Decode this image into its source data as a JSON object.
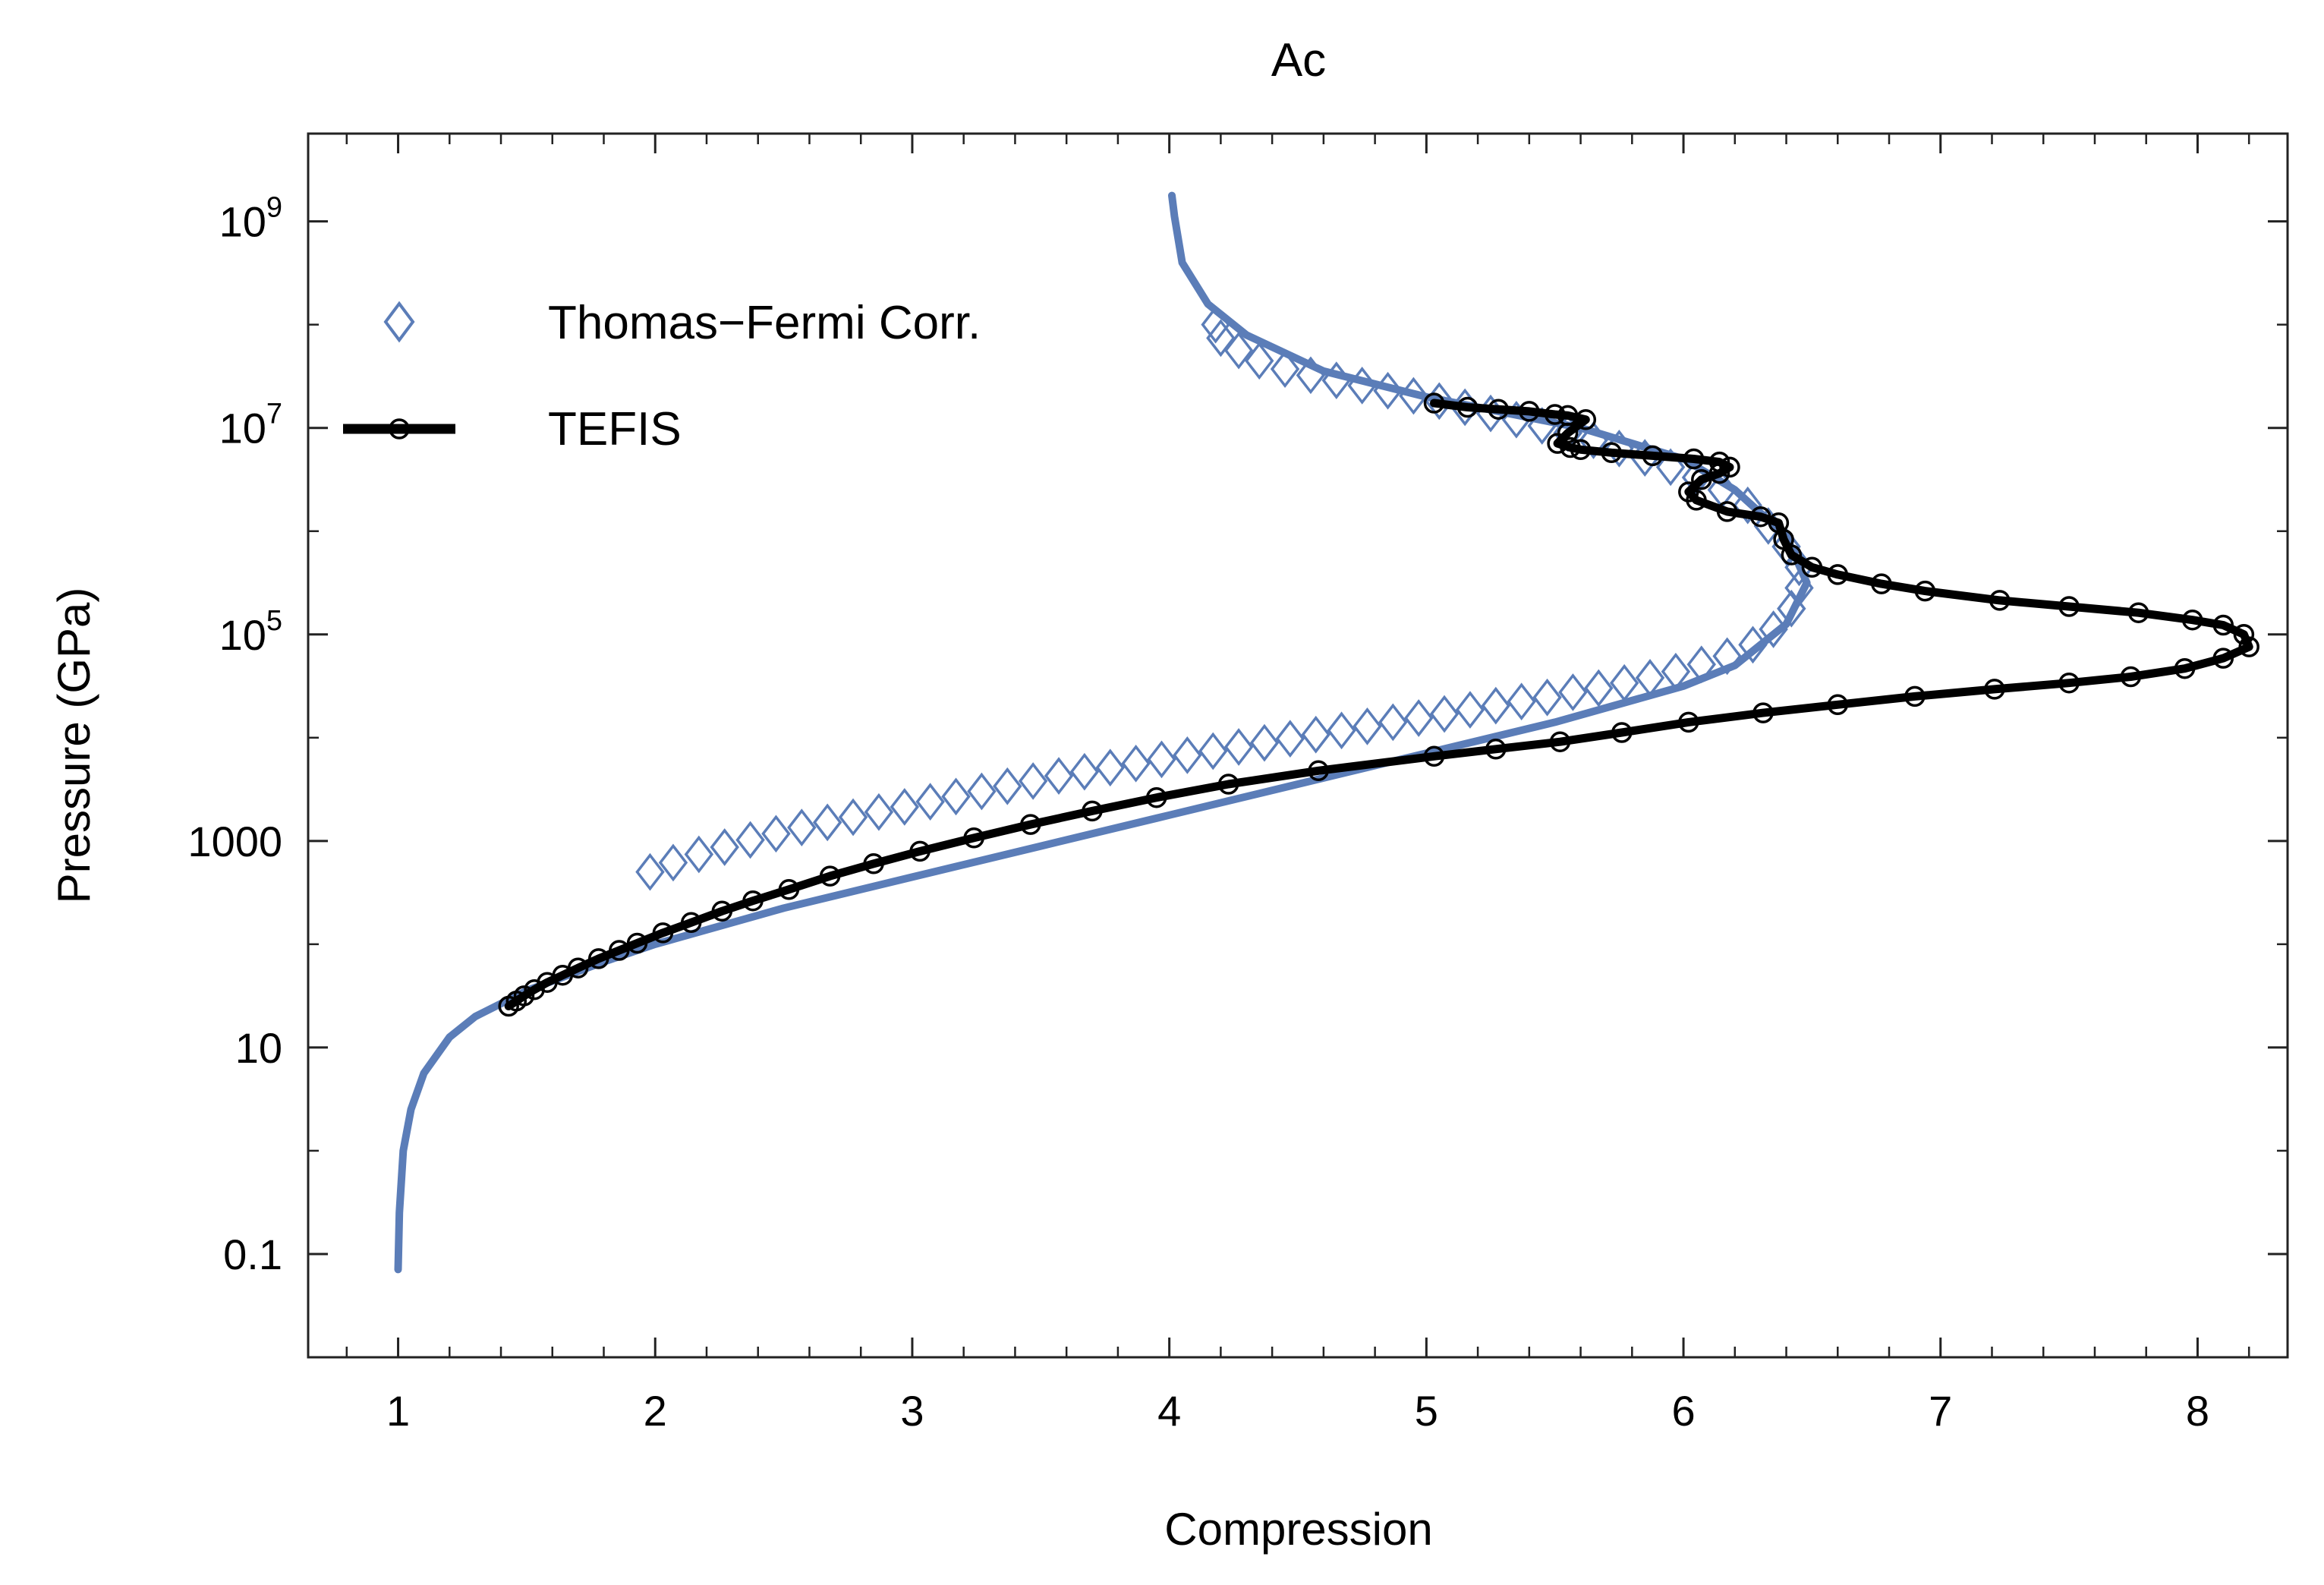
{
  "chart_data": {
    "type": "line",
    "title": "Ac",
    "xlabel": "Compression",
    "ylabel": "Pressure (GPa)",
    "xlim": [
      0.65,
      8.35
    ],
    "ylim_log10": [
      -2.0,
      9.85
    ],
    "y_scale": "log",
    "grid": false,
    "legend_position": "top-left",
    "x_ticks": [
      {
        "value": 1,
        "label": "1"
      },
      {
        "value": 2,
        "label": "2"
      },
      {
        "value": 3,
        "label": "3"
      },
      {
        "value": 4,
        "label": "4"
      },
      {
        "value": 5,
        "label": "5"
      },
      {
        "value": 6,
        "label": "6"
      },
      {
        "value": 7,
        "label": "7"
      },
      {
        "value": 8,
        "label": "8"
      }
    ],
    "y_ticks": [
      {
        "exp": -1,
        "label": "0.1",
        "sup": ""
      },
      {
        "exp": 1,
        "label": "10",
        "sup": ""
      },
      {
        "exp": 3,
        "label": "1000",
        "sup": ""
      },
      {
        "exp": 5,
        "label": "10",
        "sup": "5"
      },
      {
        "exp": 7,
        "label": "10",
        "sup": "7"
      },
      {
        "exp": 9,
        "label": "10",
        "sup": "9"
      }
    ],
    "series": [
      {
        "name": "Thomas-Fermi Corr. (curve)",
        "color": "#5b7db8",
        "style": "line",
        "points": [
          [
            1.0,
            -1.15
          ],
          [
            1.005,
            -0.6
          ],
          [
            1.02,
            0.0
          ],
          [
            1.05,
            0.4
          ],
          [
            1.1,
            0.75
          ],
          [
            1.2,
            1.1
          ],
          [
            1.3,
            1.3
          ],
          [
            1.5,
            1.55
          ],
          [
            1.8,
            1.83
          ],
          [
            2.0,
            2.0
          ],
          [
            2.5,
            2.35
          ],
          [
            3.0,
            2.65
          ],
          [
            3.5,
            2.95
          ],
          [
            4.0,
            3.25
          ],
          [
            4.5,
            3.55
          ],
          [
            5.0,
            3.85
          ],
          [
            5.5,
            4.15
          ],
          [
            6.0,
            4.5
          ],
          [
            6.2,
            4.7
          ],
          [
            6.4,
            5.1
          ],
          [
            6.48,
            5.5
          ],
          [
            6.4,
            5.95
          ],
          [
            6.2,
            6.4
          ],
          [
            6.0,
            6.7
          ],
          [
            5.6,
            7.0
          ],
          [
            5.0,
            7.3
          ],
          [
            4.6,
            7.55
          ],
          [
            4.3,
            7.9
          ],
          [
            4.15,
            8.2
          ],
          [
            4.05,
            8.6
          ],
          [
            4.02,
            9.05
          ],
          [
            4.01,
            9.25
          ]
        ]
      },
      {
        "name": "Thomas-Fermi Corr.",
        "color": "#5b7db8",
        "style": "markers",
        "marker": "diamond",
        "points": [
          [
            1.98,
            2.7
          ],
          [
            2.07,
            2.79
          ],
          [
            2.17,
            2.87
          ],
          [
            2.27,
            2.94
          ],
          [
            2.37,
            3.01
          ],
          [
            2.47,
            3.07
          ],
          [
            2.57,
            3.13
          ],
          [
            2.67,
            3.18
          ],
          [
            2.77,
            3.23
          ],
          [
            2.87,
            3.28
          ],
          [
            2.97,
            3.33
          ],
          [
            3.07,
            3.38
          ],
          [
            3.17,
            3.43
          ],
          [
            3.27,
            3.48
          ],
          [
            3.37,
            3.53
          ],
          [
            3.47,
            3.58
          ],
          [
            3.57,
            3.63
          ],
          [
            3.67,
            3.67
          ],
          [
            3.77,
            3.71
          ],
          [
            3.87,
            3.75
          ],
          [
            3.97,
            3.79
          ],
          [
            4.07,
            3.83
          ],
          [
            4.17,
            3.87
          ],
          [
            4.27,
            3.91
          ],
          [
            4.37,
            3.95
          ],
          [
            4.47,
            3.99
          ],
          [
            4.57,
            4.03
          ],
          [
            4.67,
            4.07
          ],
          [
            4.77,
            4.11
          ],
          [
            4.87,
            4.15
          ],
          [
            4.97,
            4.19
          ],
          [
            5.07,
            4.23
          ],
          [
            5.17,
            4.27
          ],
          [
            5.27,
            4.31
          ],
          [
            5.37,
            4.35
          ],
          [
            5.47,
            4.39
          ],
          [
            5.57,
            4.44
          ],
          [
            5.67,
            4.48
          ],
          [
            5.77,
            4.53
          ],
          [
            5.87,
            4.58
          ],
          [
            5.97,
            4.64
          ],
          [
            6.07,
            4.71
          ],
          [
            6.17,
            4.79
          ],
          [
            6.27,
            4.9
          ],
          [
            6.35,
            5.05
          ],
          [
            6.42,
            5.25
          ],
          [
            6.45,
            5.45
          ],
          [
            6.45,
            5.65
          ],
          [
            6.4,
            5.85
          ],
          [
            6.33,
            6.05
          ],
          [
            6.25,
            6.25
          ],
          [
            6.15,
            6.4
          ],
          [
            6.05,
            6.52
          ],
          [
            5.95,
            6.62
          ],
          [
            5.85,
            6.71
          ],
          [
            5.75,
            6.8
          ],
          [
            5.65,
            6.88
          ],
          [
            5.55,
            6.95
          ],
          [
            5.45,
            7.02
          ],
          [
            5.35,
            7.08
          ],
          [
            5.25,
            7.14
          ],
          [
            5.15,
            7.2
          ],
          [
            5.05,
            7.26
          ],
          [
            4.95,
            7.31
          ],
          [
            4.85,
            7.36
          ],
          [
            4.75,
            7.41
          ],
          [
            4.65,
            7.46
          ],
          [
            4.55,
            7.51
          ],
          [
            4.45,
            7.57
          ],
          [
            4.35,
            7.65
          ],
          [
            4.27,
            7.75
          ],
          [
            4.2,
            7.87
          ],
          [
            4.18,
            8.0
          ]
        ]
      },
      {
        "name": "TEFIS",
        "color": "#000000",
        "style": "line+markers",
        "marker": "circle",
        "points": [
          [
            1.43,
            1.4
          ],
          [
            1.46,
            1.45
          ],
          [
            1.49,
            1.5
          ],
          [
            1.53,
            1.56
          ],
          [
            1.58,
            1.63
          ],
          [
            1.64,
            1.7
          ],
          [
            1.7,
            1.77
          ],
          [
            1.78,
            1.86
          ],
          [
            1.86,
            1.94
          ],
          [
            1.93,
            2.01
          ],
          [
            2.03,
            2.11
          ],
          [
            2.14,
            2.21
          ],
          [
            2.26,
            2.32
          ],
          [
            2.38,
            2.42
          ],
          [
            2.52,
            2.53
          ],
          [
            2.68,
            2.66
          ],
          [
            2.85,
            2.78
          ],
          [
            3.03,
            2.9
          ],
          [
            3.24,
            3.03
          ],
          [
            3.46,
            3.16
          ],
          [
            3.7,
            3.29
          ],
          [
            3.95,
            3.42
          ],
          [
            4.23,
            3.55
          ],
          [
            4.58,
            3.68
          ],
          [
            5.03,
            3.82
          ],
          [
            5.27,
            3.89
          ],
          [
            5.52,
            3.96
          ],
          [
            5.76,
            4.05
          ],
          [
            6.02,
            4.15
          ],
          [
            6.31,
            4.24
          ],
          [
            6.6,
            4.32
          ],
          [
            6.9,
            4.4
          ],
          [
            7.21,
            4.47
          ],
          [
            7.5,
            4.53
          ],
          [
            7.74,
            4.59
          ],
          [
            7.95,
            4.67
          ],
          [
            8.1,
            4.77
          ],
          [
            8.2,
            4.88
          ],
          [
            8.18,
            5.0
          ],
          [
            8.1,
            5.09
          ],
          [
            7.98,
            5.14
          ],
          [
            7.77,
            5.21
          ],
          [
            7.5,
            5.27
          ],
          [
            7.23,
            5.33
          ],
          [
            6.94,
            5.42
          ],
          [
            6.77,
            5.49
          ],
          [
            6.6,
            5.58
          ],
          [
            6.5,
            5.65
          ],
          [
            6.42,
            5.77
          ],
          [
            6.39,
            5.92
          ],
          [
            6.37,
            6.08
          ],
          [
            6.3,
            6.14
          ],
          [
            6.17,
            6.19
          ],
          [
            6.05,
            6.3
          ],
          [
            6.02,
            6.38
          ],
          [
            6.07,
            6.5
          ],
          [
            6.14,
            6.56
          ],
          [
            6.18,
            6.62
          ],
          [
            6.14,
            6.67
          ],
          [
            6.04,
            6.7
          ],
          [
            5.88,
            6.73
          ],
          [
            5.72,
            6.76
          ],
          [
            5.6,
            6.79
          ],
          [
            5.56,
            6.81
          ],
          [
            5.51,
            6.85
          ],
          [
            5.55,
            6.95
          ],
          [
            5.62,
            7.08
          ],
          [
            5.55,
            7.12
          ],
          [
            5.5,
            7.13
          ],
          [
            5.4,
            7.16
          ],
          [
            5.28,
            7.18
          ],
          [
            5.16,
            7.2
          ],
          [
            5.03,
            7.24
          ]
        ]
      }
    ],
    "legend": [
      {
        "label": "Thomas−Fermi Corr.",
        "marker": "diamond",
        "color": "#5b7db8"
      },
      {
        "label": "TEFIS",
        "marker": "line-circle",
        "color": "#000000"
      }
    ]
  }
}
